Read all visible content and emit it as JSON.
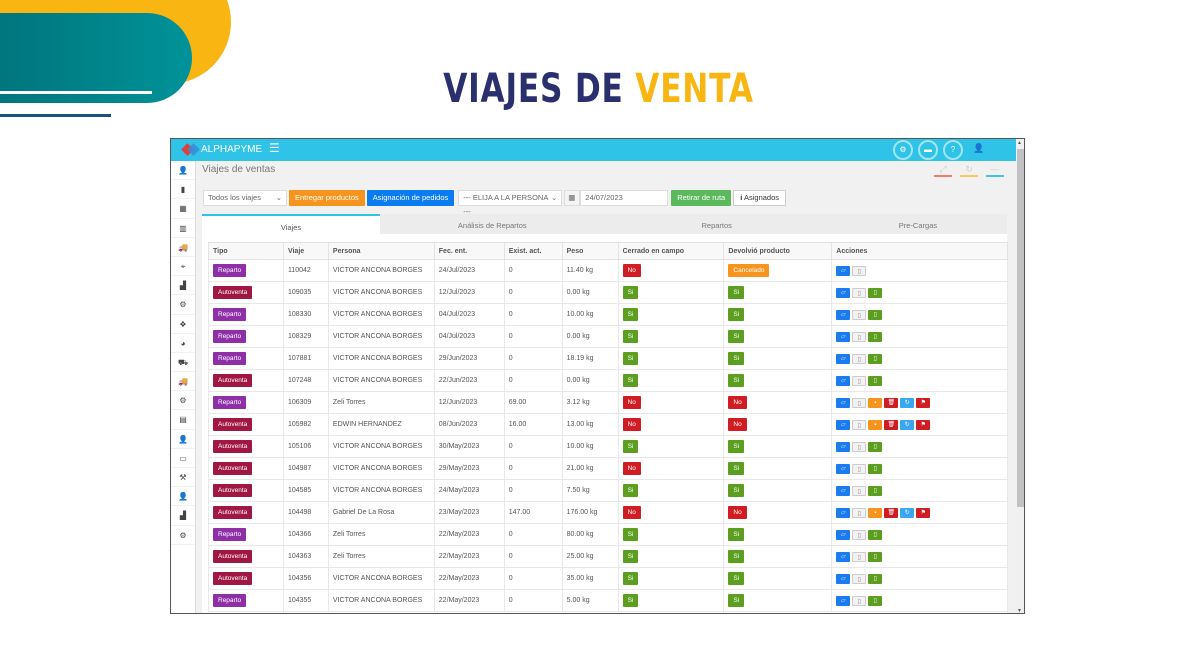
{
  "slide": {
    "title_part1": "VIAJES DE",
    "title_part2": "VENTA"
  },
  "app": {
    "brand": "ALPHAPYME",
    "breadcrumb": "Viajes de ventas"
  },
  "toolbar": {
    "trip_filter": "Todos los viajes",
    "deliver_label": "Entregar productos",
    "assign_label": "Asignación de pedidos",
    "person_select": "--- ELIJA A LA PERSONA ---",
    "date": "24/07/2023",
    "remove_route_label": "Retirar de ruta",
    "assigned_label": "Asignados"
  },
  "tabs": [
    "Viajes",
    "Análisis de Repartos",
    "Repartos",
    "Pre-Cargas"
  ],
  "colors": {
    "navbar": "#2fc3e8",
    "reparto": "#8e2fa8",
    "autoventa": "#a01743",
    "si": "#5c9e20",
    "no": "#d01d24",
    "cancelado": "#f7941d"
  },
  "table": {
    "headers": [
      "Tipo",
      "Viaje",
      "Persona",
      "Fec. ent.",
      "Exist. act.",
      "Peso",
      "Cerrado en campo",
      "Devolvió producto",
      "Acciones"
    ],
    "rows": [
      {
        "tipo": "Reparto",
        "viaje": "110042",
        "persona": "VICTOR ANCONA BORGES",
        "fecha": "24/Jul/2023",
        "exist": "0",
        "peso": "11.40 kg",
        "cerrado": "No",
        "devolvio": "Cancelado",
        "acciones": "basic"
      },
      {
        "tipo": "Autoventa",
        "viaje": "109035",
        "persona": "VICTOR ANCONA BORGES",
        "fecha": "12/Jul/2023",
        "exist": "0",
        "peso": "0.00 kg",
        "cerrado": "Si",
        "devolvio": "Si",
        "acciones": "standard"
      },
      {
        "tipo": "Reparto",
        "viaje": "108330",
        "persona": "VICTOR ANCONA BORGES",
        "fecha": "04/Jul/2023",
        "exist": "0",
        "peso": "10.00 kg",
        "cerrado": "Si",
        "devolvio": "Si",
        "acciones": "standard"
      },
      {
        "tipo": "Reparto",
        "viaje": "108329",
        "persona": "VICTOR ANCONA BORGES",
        "fecha": "04/Jul/2023",
        "exist": "0",
        "peso": "0.00 kg",
        "cerrado": "Si",
        "devolvio": "Si",
        "acciones": "standard"
      },
      {
        "tipo": "Reparto",
        "viaje": "107881",
        "persona": "VICTOR ANCONA BORGES",
        "fecha": "29/Jun/2023",
        "exist": "0",
        "peso": "18.19 kg",
        "cerrado": "Si",
        "devolvio": "Si",
        "acciones": "standard"
      },
      {
        "tipo": "Autoventa",
        "viaje": "107248",
        "persona": "VICTOR ANCONA BORGES",
        "fecha": "22/Jun/2023",
        "exist": "0",
        "peso": "0.00 kg",
        "cerrado": "Si",
        "devolvio": "Si",
        "acciones": "standard"
      },
      {
        "tipo": "Reparto",
        "viaje": "106309",
        "persona": "Zeli Torres",
        "fecha": "12/Jun/2023",
        "exist": "69.00",
        "peso": "3.12 kg",
        "cerrado": "No",
        "devolvio": "No",
        "acciones": "full"
      },
      {
        "tipo": "Autoventa",
        "viaje": "105982",
        "persona": "EDWIN HERNANDEZ",
        "fecha": "08/Jun/2023",
        "exist": "16.00",
        "peso": "13.00 kg",
        "cerrado": "No",
        "devolvio": "No",
        "acciones": "full"
      },
      {
        "tipo": "Autoventa",
        "viaje": "105106",
        "persona": "VICTOR ANCONA BORGES",
        "fecha": "30/May/2023",
        "exist": "0",
        "peso": "10.00 kg",
        "cerrado": "Si",
        "devolvio": "Si",
        "acciones": "standard"
      },
      {
        "tipo": "Autoventa",
        "viaje": "104987",
        "persona": "VICTOR ANCONA BORGES",
        "fecha": "29/May/2023",
        "exist": "0",
        "peso": "21.00 kg",
        "cerrado": "No",
        "devolvio": "Si",
        "acciones": "standard"
      },
      {
        "tipo": "Autoventa",
        "viaje": "104585",
        "persona": "VICTOR ANCONA BORGES",
        "fecha": "24/May/2023",
        "exist": "0",
        "peso": "7.50 kg",
        "cerrado": "Si",
        "devolvio": "Si",
        "acciones": "standard"
      },
      {
        "tipo": "Autoventa",
        "viaje": "104498",
        "persona": "Gabriel De La Rosa",
        "fecha": "23/May/2023",
        "exist": "147.00",
        "peso": "176.00 kg",
        "cerrado": "No",
        "devolvio": "No",
        "acciones": "full"
      },
      {
        "tipo": "Reparto",
        "viaje": "104366",
        "persona": "Zeli Torres",
        "fecha": "22/May/2023",
        "exist": "0",
        "peso": "80.00 kg",
        "cerrado": "Si",
        "devolvio": "Si",
        "acciones": "standard"
      },
      {
        "tipo": "Autoventa",
        "viaje": "104363",
        "persona": "Zeli Torres",
        "fecha": "22/May/2023",
        "exist": "0",
        "peso": "25.00 kg",
        "cerrado": "Si",
        "devolvio": "Si",
        "acciones": "standard"
      },
      {
        "tipo": "Autoventa",
        "viaje": "104356",
        "persona": "VICTOR ANCONA BORGES",
        "fecha": "22/May/2023",
        "exist": "0",
        "peso": "35.00 kg",
        "cerrado": "Si",
        "devolvio": "Si",
        "acciones": "standard"
      },
      {
        "tipo": "Reparto",
        "viaje": "104355",
        "persona": "VICTOR ANCONA BORGES",
        "fecha": "22/May/2023",
        "exist": "0",
        "peso": "5.00 kg",
        "cerrado": "Si",
        "devolvio": "Si",
        "acciones": "standard"
      }
    ]
  }
}
